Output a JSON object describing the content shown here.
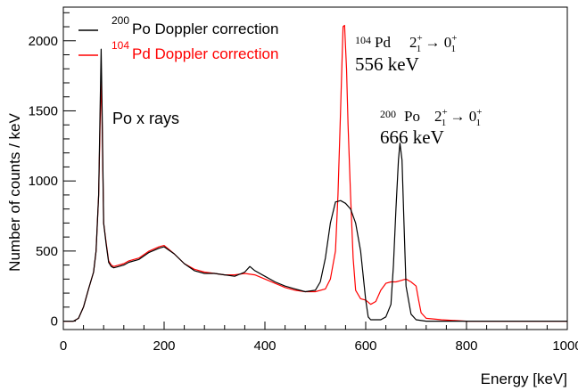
{
  "chart_data": {
    "type": "line",
    "xlabel": "Energy [keV]",
    "ylabel": "Number of counts / keV",
    "xlim": [
      0,
      1000
    ],
    "ylim": [
      -60,
      2240
    ],
    "x_ticks": [
      0,
      200,
      400,
      600,
      800,
      1000
    ],
    "y_ticks": [
      0,
      500,
      1000,
      1500,
      2000
    ],
    "grid": false,
    "legend_position": "top-left",
    "series": [
      {
        "name_prefix": "200",
        "name": "Po Doppler correction",
        "color": "#000000",
        "x": [
          0,
          20,
          30,
          40,
          50,
          60,
          65,
          70,
          73,
          75,
          77,
          80,
          85,
          90,
          95,
          100,
          110,
          120,
          130,
          150,
          170,
          190,
          200,
          220,
          240,
          260,
          280,
          300,
          320,
          340,
          360,
          370,
          380,
          400,
          420,
          440,
          460,
          480,
          500,
          510,
          520,
          530,
          540,
          550,
          560,
          570,
          580,
          590,
          600,
          605,
          610,
          620,
          630,
          640,
          650,
          655,
          660,
          665,
          668,
          672,
          676,
          680,
          690,
          700,
          720,
          750,
          800,
          850,
          900,
          950,
          1000
        ],
        "y": [
          0,
          0,
          20,
          100,
          230,
          350,
          500,
          900,
          1500,
          1940,
          1500,
          700,
          550,
          420,
          390,
          380,
          390,
          400,
          420,
          440,
          490,
          520,
          530,
          480,
          410,
          360,
          340,
          340,
          330,
          320,
          350,
          390,
          360,
          320,
          280,
          250,
          230,
          210,
          220,
          280,
          450,
          700,
          850,
          860,
          840,
          800,
          700,
          500,
          150,
          30,
          10,
          10,
          10,
          30,
          120,
          400,
          800,
          1150,
          1270,
          1150,
          700,
          250,
          50,
          10,
          0,
          0,
          0,
          0,
          0,
          0,
          0
        ]
      },
      {
        "name_prefix": "104",
        "name": "Pd Doppler correction",
        "color": "#ff0000",
        "x": [
          0,
          20,
          30,
          40,
          50,
          60,
          65,
          70,
          73,
          75,
          77,
          80,
          85,
          90,
          95,
          100,
          110,
          120,
          130,
          150,
          170,
          190,
          200,
          220,
          240,
          260,
          280,
          300,
          320,
          340,
          360,
          380,
          400,
          420,
          440,
          460,
          480,
          500,
          520,
          530,
          540,
          545,
          550,
          555,
          558,
          562,
          565,
          570,
          575,
          580,
          590,
          600,
          610,
          620,
          630,
          640,
          650,
          660,
          670,
          680,
          690,
          700,
          705,
          710,
          720,
          750,
          800,
          850,
          900,
          950,
          1000
        ],
        "y": [
          0,
          0,
          20,
          100,
          230,
          350,
          500,
          900,
          1400,
          1750,
          1400,
          700,
          560,
          430,
          400,
          390,
          400,
          410,
          430,
          450,
          500,
          530,
          540,
          480,
          410,
          370,
          350,
          340,
          330,
          330,
          340,
          330,
          300,
          270,
          240,
          220,
          210,
          210,
          230,
          300,
          500,
          900,
          1500,
          2100,
          2110,
          1800,
          1400,
          900,
          450,
          220,
          160,
          150,
          120,
          140,
          220,
          270,
          280,
          280,
          290,
          300,
          280,
          250,
          150,
          60,
          20,
          10,
          0,
          0,
          0,
          0,
          0
        ]
      }
    ],
    "annotations": [
      {
        "text": "Po x rays",
        "x": 95,
        "y": 1530
      },
      {
        "text": "104Pd 2+1 → 0+1",
        "nucleus_mass": "104",
        "nucleus": "Pd",
        "energy": "556 keV"
      },
      {
        "text": "200Po 2+1 → 0+1",
        "nucleus_mass": "200",
        "nucleus": "Po",
        "energy": "666 keV"
      }
    ]
  }
}
